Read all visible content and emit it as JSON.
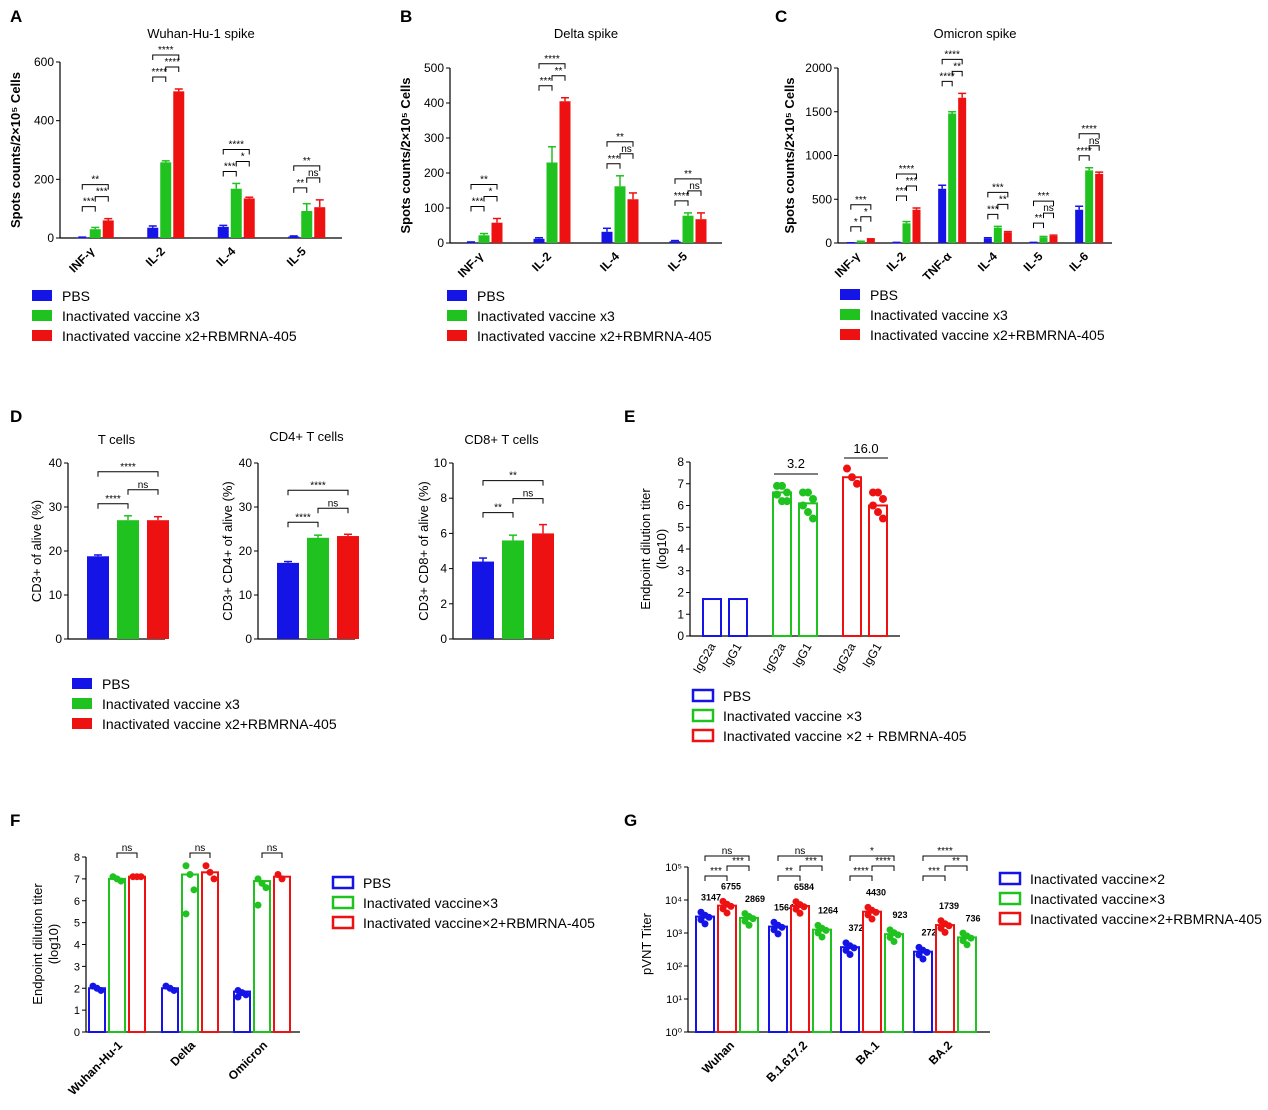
{
  "legends": {
    "abc": [
      "PBS",
      "Inactivated vaccine x3",
      "Inactivated vaccine x2+RBMRNA-405"
    ],
    "e": [
      "PBS",
      "Inactivated vaccine ×3",
      "Inactivated vaccine ×2 + RBMRNA-405"
    ],
    "f": [
      "PBS",
      "Inactivated vaccine×3",
      "Inactivated vaccine×2+RBMRNA-405"
    ],
    "g": [
      "Inactivated vaccine×2",
      "Inactivated vaccine×3",
      "Inactivated vaccine×2+RBMRNA-405"
    ]
  },
  "colors": {
    "blue": "#1414e6",
    "green": "#1fc21f",
    "red": "#ee1111"
  },
  "chart_data": [
    {
      "panel": "A",
      "type": "bar",
      "title": "Wuhan-Hu-1 spike",
      "ylabel": "Spots counts/2×10⁵ Cells",
      "ylim": [
        0,
        600
      ],
      "yticks": [
        0,
        200,
        400,
        600
      ],
      "categories": [
        "INF-γ",
        "IL-2",
        "IL-4",
        "IL-5"
      ],
      "series": [
        {
          "name": "PBS",
          "values": [
            2,
            35,
            38,
            5
          ],
          "errors": [
            1,
            6,
            5,
            2
          ]
        },
        {
          "name": "Inactivated vaccine x3",
          "values": [
            30,
            258,
            168,
            92
          ],
          "errors": [
            6,
            5,
            18,
            25
          ]
        },
        {
          "name": "Inactivated vaccine x2+RBMRNA-405",
          "values": [
            60,
            500,
            135,
            105
          ],
          "errors": [
            6,
            8,
            4,
            25
          ]
        }
      ],
      "significance": [
        {
          "category": "INF-γ",
          "labels": [
            "***",
            "***",
            "**"
          ]
        },
        {
          "category": "IL-2",
          "labels": [
            "****",
            "****",
            "****"
          ]
        },
        {
          "category": "IL-4",
          "labels": [
            "***",
            "*",
            "****"
          ]
        },
        {
          "category": "IL-5",
          "labels": [
            "**",
            "ns",
            "**"
          ]
        }
      ]
    },
    {
      "panel": "B",
      "type": "bar",
      "title": "Delta spike",
      "ylabel": "Spots counts/2×10⁵ Cells",
      "ylim": [
        0,
        500
      ],
      "yticks": [
        0,
        100,
        200,
        300,
        400,
        500
      ],
      "categories": [
        "INF-γ",
        "IL-2",
        "IL-4",
        "IL-5"
      ],
      "series": [
        {
          "name": "PBS",
          "values": [
            2,
            12,
            32,
            5
          ],
          "errors": [
            1,
            3,
            10,
            2
          ]
        },
        {
          "name": "Inactivated vaccine x3",
          "values": [
            22,
            230,
            162,
            78
          ],
          "errors": [
            5,
            45,
            30,
            8
          ]
        },
        {
          "name": "Inactivated vaccine x2+RBMRNA-405",
          "values": [
            58,
            405,
            125,
            68
          ],
          "errors": [
            12,
            10,
            18,
            18
          ]
        }
      ],
      "significance": [
        {
          "category": "INF-γ",
          "labels": [
            "***",
            "*",
            "**"
          ]
        },
        {
          "category": "IL-2",
          "labels": [
            "***",
            "**",
            "****"
          ]
        },
        {
          "category": "IL-4",
          "labels": [
            "***",
            "ns",
            "**"
          ]
        },
        {
          "category": "IL-5",
          "labels": [
            "****",
            "ns",
            "**"
          ]
        }
      ]
    },
    {
      "panel": "C",
      "type": "bar",
      "title": "Omicron spike",
      "ylabel": "Spots counts/2×10⁵ Cells",
      "ylim": [
        0,
        2000
      ],
      "yticks": [
        0,
        500,
        1000,
        1500,
        2000
      ],
      "categories": [
        "INF-γ",
        "IL-2",
        "TNF-α",
        "IL-4",
        "IL-5",
        "IL-6"
      ],
      "series": [
        {
          "name": "PBS",
          "values": [
            2,
            5,
            620,
            50,
            5,
            380
          ],
          "errors": [
            1,
            2,
            40,
            10,
            2,
            40
          ]
        },
        {
          "name": "Inactivated vaccine x3",
          "values": [
            15,
            225,
            1480,
            175,
            65,
            830
          ],
          "errors": [
            5,
            20,
            20,
            15,
            10,
            30
          ]
        },
        {
          "name": "Inactivated vaccine x2+RBMRNA-405",
          "values": [
            40,
            380,
            1660,
            120,
            80,
            790
          ],
          "errors": [
            8,
            20,
            50,
            10,
            10,
            20
          ]
        }
      ],
      "significance": [
        {
          "category": "INF-γ",
          "labels": [
            "*",
            "*",
            "***"
          ]
        },
        {
          "category": "IL-2",
          "labels": [
            "***",
            "***",
            "****"
          ]
        },
        {
          "category": "TNF-α",
          "labels": [
            "****",
            "**",
            "****"
          ]
        },
        {
          "category": "IL-4",
          "labels": [
            "***",
            "**",
            "***"
          ]
        },
        {
          "category": "IL-5",
          "labels": [
            "**",
            "ns",
            "***"
          ]
        },
        {
          "category": "IL-6",
          "labels": [
            "****",
            "ns",
            "****"
          ]
        }
      ]
    },
    {
      "panel": "D",
      "type": "bar",
      "title": "T cells",
      "ylabel": "CD3+ of alive (%)",
      "ylim": [
        0,
        40
      ],
      "yticks": [
        0,
        10,
        20,
        30,
        40
      ],
      "categories": [
        "PBS",
        "Inactivated vaccine x3",
        "Inactivated vaccine x2+RBMRNA-405"
      ],
      "values": [
        18.8,
        27.0,
        27.0
      ],
      "errors": [
        0.3,
        1.0,
        0.8
      ],
      "significance": [
        "****",
        "ns",
        "****"
      ]
    },
    {
      "panel": "D",
      "type": "bar",
      "title": "CD4+ T cells",
      "ylabel": "CD3+ CD4+ of alive (%)",
      "ylim": [
        0,
        40
      ],
      "yticks": [
        0,
        10,
        20,
        30,
        40
      ],
      "categories": [
        "PBS",
        "Inactivated vaccine x3",
        "Inactivated vaccine x2+RBMRNA-405"
      ],
      "values": [
        17.3,
        23.0,
        23.4
      ],
      "errors": [
        0.3,
        0.6,
        0.4
      ],
      "significance": [
        "****",
        "ns",
        "****"
      ]
    },
    {
      "panel": "D",
      "type": "bar",
      "title": "CD8+ T cells",
      "ylabel": "CD3+ CD8+ of alive (%)",
      "ylim": [
        0,
        10
      ],
      "yticks": [
        0,
        2,
        4,
        6,
        8,
        10
      ],
      "categories": [
        "PBS",
        "Inactivated vaccine x3",
        "Inactivated vaccine x2+RBMRNA-405"
      ],
      "values": [
        4.4,
        5.6,
        6.0
      ],
      "errors": [
        0.2,
        0.3,
        0.5
      ],
      "significance": [
        "**",
        "ns",
        "**"
      ]
    },
    {
      "panel": "E",
      "type": "bar",
      "ylabel": "Endpoint dilution titer (log10)",
      "ylim": [
        0,
        8
      ],
      "yticks": [
        0,
        1,
        2,
        3,
        4,
        5,
        6,
        7,
        8
      ],
      "categories": [
        "IgG2a",
        "IgG1",
        "IgG2a",
        "IgG1",
        "IgG2a",
        "IgG1"
      ],
      "groups": [
        "PBS",
        "PBS",
        "Inactivated vaccine ×3",
        "Inactivated vaccine ×3",
        "Inactivated vaccine ×2 + RBMRNA-405",
        "Inactivated vaccine ×2 + RBMRNA-405"
      ],
      "values": [
        1.7,
        1.7,
        6.6,
        6.1,
        7.3,
        6.0
      ],
      "points": [
        [],
        [],
        [
          6.9,
          6.9,
          6.6,
          6.5,
          6.2,
          6.2
        ],
        [
          6.6,
          6.6,
          6.3,
          6.0,
          5.7,
          5.4
        ],
        [
          7.7,
          7.3,
          7.0
        ],
        [
          6.6,
          6.6,
          6.3,
          6.0,
          5.7,
          5.4
        ]
      ],
      "annotations": [
        "3.2",
        "16.0"
      ]
    },
    {
      "panel": "F",
      "type": "bar",
      "ylabel": "Endpoint dilution titer (log10)",
      "ylim": [
        0,
        8
      ],
      "yticks": [
        0,
        1,
        2,
        3,
        4,
        5,
        6,
        7,
        8
      ],
      "categories": [
        "Wuhan-Hu-1",
        "Delta",
        "Omicron"
      ],
      "series": [
        {
          "name": "PBS",
          "values": [
            2.0,
            2.0,
            1.85
          ]
        },
        {
          "name": "Inactivated vaccine×3",
          "values": [
            7.0,
            7.2,
            6.9
          ]
        },
        {
          "name": "Inactivated vaccine×2+RBMRNA-405",
          "values": [
            7.1,
            7.3,
            7.1
          ]
        }
      ],
      "points": [
        [
          [
            2.1,
            2.0,
            1.9
          ],
          [
            7.1,
            7.0,
            6.9
          ],
          [
            7.1,
            7.1,
            7.1
          ]
        ],
        [
          [
            2.1,
            2.0,
            1.9
          ],
          [
            7.6,
            7.2,
            6.5,
            5.4
          ],
          [
            7.6,
            7.3,
            7.0
          ]
        ],
        [
          [
            1.9,
            1.8,
            1.7,
            1.6
          ],
          [
            7.0,
            6.8,
            6.6,
            5.8
          ],
          [
            7.2,
            7.0
          ]
        ]
      ],
      "significance": [
        "ns",
        "ns",
        "ns"
      ]
    },
    {
      "panel": "G",
      "type": "bar",
      "ylabel": "pVNT Titer",
      "yscale": "log",
      "ylim": [
        1,
        100000
      ],
      "yticks": [
        "10⁰",
        "10¹",
        "10²",
        "10³",
        "10⁴",
        "10⁵"
      ],
      "categories": [
        "Wuhan",
        "B.1.617.2",
        "BA.1",
        "BA.2"
      ],
      "series": [
        {
          "name": "Inactivated vaccine×2",
          "values": [
            3147,
            1564,
            372,
            272
          ]
        },
        {
          "name": "Inactivated vaccine×2+RBMRNA-405",
          "values": [
            6755,
            6584,
            4430,
            1739
          ]
        },
        {
          "name": "Inactivated vaccine×3",
          "values": [
            2869,
            1264,
            923,
            736
          ]
        }
      ],
      "value_labels": [
        [
          "3147",
          "6755",
          "2869"
        ],
        [
          "1564",
          "6584",
          "1264"
        ],
        [
          "372",
          "4430",
          "923"
        ],
        [
          "272",
          "1739",
          "736"
        ]
      ],
      "significance": [
        [
          "***",
          "***",
          "ns"
        ],
        [
          "**",
          "***",
          "ns"
        ],
        [
          "****",
          "****",
          "*"
        ],
        [
          "***",
          "**",
          "****"
        ]
      ]
    }
  ]
}
